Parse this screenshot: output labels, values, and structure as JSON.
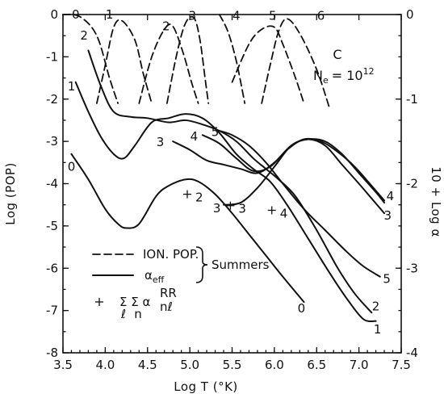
{
  "chart_data": {
    "type": "line",
    "title": "",
    "annotation": {
      "element": "C",
      "ne_label": "N",
      "ne_sub": "e",
      "ne_value": "= 10",
      "ne_exp": "12"
    },
    "xlabel": "Log T (°K)",
    "ylabel_left": "Log (POP)",
    "ylabel_right": "10 + Log α",
    "xlim": [
      3.5,
      7.5
    ],
    "ylim_left": [
      -8,
      0
    ],
    "ylim_right": [
      -4,
      0
    ],
    "x_ticks": [
      "3.5",
      "4.0",
      "4.5",
      "5.0",
      "5.5",
      "6.0",
      "6.5",
      "7.0",
      "7.5"
    ],
    "y_ticks_left": [
      "0",
      "-1",
      "-2",
      "-3",
      "-4",
      "-5",
      "-6",
      "-7",
      "-8"
    ],
    "y_ticks_right": [
      "0",
      "-1",
      "-2",
      "-3",
      "-4"
    ],
    "legend": {
      "dashed_label": "ION. POP.",
      "solid_label": "α",
      "solid_sub": "eff",
      "source_label": "Summers",
      "plus_label": "Σ Σ α",
      "plus_sub_sum1": "ℓ",
      "plus_sub_sum2": "n",
      "plus_sup": "RR",
      "plus_sub_alpha": "nℓ"
    },
    "series": [
      {
        "name": "0",
        "style": "dashed",
        "label_pos": [
          3.65,
          0.0
        ],
        "points": [
          [
            3.5,
            0
          ],
          [
            3.7,
            -0.05
          ],
          [
            3.9,
            -0.5
          ],
          [
            4.05,
            -1.5
          ],
          [
            4.15,
            -2.1
          ]
        ]
      },
      {
        "name": "1",
        "style": "dashed",
        "label_pos": [
          4.05,
          0.0
        ],
        "points": [
          [
            3.9,
            -2.1
          ],
          [
            4.0,
            -1.2
          ],
          [
            4.1,
            -0.3
          ],
          [
            4.2,
            -0.15
          ],
          [
            4.35,
            -0.6
          ],
          [
            4.45,
            -1.4
          ],
          [
            4.55,
            -2.1
          ]
        ]
      },
      {
        "name": "2",
        "style": "dashed",
        "label_pos": [
          4.72,
          -0.28
        ],
        "points": [
          [
            4.4,
            -2.1
          ],
          [
            4.55,
            -1.0
          ],
          [
            4.7,
            -0.35
          ],
          [
            4.8,
            -0.28
          ],
          [
            4.92,
            -0.9
          ],
          [
            5.02,
            -1.6
          ],
          [
            5.1,
            -2.1
          ]
        ]
      },
      {
        "name": "3",
        "style": "dashed",
        "label_pos": [
          5.03,
          -0.03
        ],
        "points": [
          [
            4.73,
            -2.1
          ],
          [
            4.85,
            -0.9
          ],
          [
            4.95,
            -0.2
          ],
          [
            5.05,
            -0.08
          ],
          [
            5.12,
            -0.6
          ],
          [
            5.18,
            -1.5
          ],
          [
            5.22,
            -2.1
          ]
        ]
      },
      {
        "name": "4",
        "style": "dashed",
        "label_pos": [
          5.55,
          -0.03
        ],
        "points": [
          [
            5.35,
            0
          ],
          [
            5.45,
            -0.4
          ],
          [
            5.55,
            -1.1
          ],
          [
            5.65,
            -2.1
          ]
        ]
      },
      {
        "name": "5",
        "style": "dashed",
        "label_pos": [
          5.98,
          -0.03
        ],
        "points": [
          [
            5.5,
            -1.6
          ],
          [
            5.7,
            -0.7
          ],
          [
            5.85,
            -0.35
          ],
          [
            6.0,
            -0.3
          ],
          [
            6.1,
            -0.7
          ],
          [
            6.25,
            -1.5
          ],
          [
            6.35,
            -2.1
          ]
        ]
      },
      {
        "name": "6",
        "style": "dashed",
        "label_pos": [
          6.55,
          -0.03
        ],
        "points": [
          [
            5.85,
            -2.1
          ],
          [
            5.95,
            -1.2
          ],
          [
            6.05,
            -0.4
          ],
          [
            6.15,
            -0.1
          ],
          [
            6.3,
            -0.45
          ],
          [
            6.5,
            -1.3
          ],
          [
            6.65,
            -2.2
          ]
        ]
      },
      {
        "name": "0",
        "style": "solid",
        "label_pos": [
          3.6,
          -3.6
        ],
        "points": [
          [
            3.6,
            -3.3
          ],
          [
            3.8,
            -3.9
          ],
          [
            4.0,
            -4.6
          ],
          [
            4.15,
            -4.95
          ],
          [
            4.25,
            -5.05
          ],
          [
            4.4,
            -4.95
          ],
          [
            4.6,
            -4.3
          ],
          [
            4.75,
            -4.05
          ],
          [
            4.95,
            -3.9
          ],
          [
            5.1,
            -3.95
          ],
          [
            5.3,
            -4.25
          ],
          [
            5.5,
            -4.7
          ],
          [
            5.7,
            -5.2
          ],
          [
            5.9,
            -5.7
          ],
          [
            6.1,
            -6.2
          ],
          [
            6.35,
            -6.8
          ]
        ]
      },
      {
        "name": "1",
        "style": "solid",
        "label_pos": [
          3.6,
          -1.7
        ],
        "points": [
          [
            3.65,
            -1.6
          ],
          [
            3.8,
            -2.3
          ],
          [
            3.95,
            -2.9
          ],
          [
            4.1,
            -3.3
          ],
          [
            4.22,
            -3.4
          ],
          [
            4.35,
            -3.1
          ],
          [
            4.55,
            -2.55
          ],
          [
            4.75,
            -2.45
          ],
          [
            4.95,
            -2.35
          ],
          [
            5.15,
            -2.45
          ],
          [
            5.35,
            -2.8
          ],
          [
            5.55,
            -3.3
          ],
          [
            5.75,
            -3.65
          ],
          [
            5.95,
            -3.95
          ],
          [
            6.15,
            -4.5
          ],
          [
            6.4,
            -5.3
          ],
          [
            6.65,
            -6.1
          ],
          [
            6.85,
            -6.7
          ],
          [
            7.05,
            -7.2
          ],
          [
            7.2,
            -7.25
          ]
        ]
      },
      {
        "name": "2",
        "style": "solid",
        "label_pos": [
          3.75,
          -0.5
        ],
        "points": [
          [
            3.8,
            -0.85
          ],
          [
            3.95,
            -1.7
          ],
          [
            4.1,
            -2.3
          ],
          [
            4.3,
            -2.42
          ],
          [
            4.5,
            -2.45
          ],
          [
            4.75,
            -2.55
          ],
          [
            4.95,
            -2.5
          ],
          [
            5.15,
            -2.6
          ],
          [
            5.35,
            -2.75
          ],
          [
            5.55,
            -3.0
          ],
          [
            5.75,
            -3.4
          ],
          [
            5.9,
            -3.65
          ],
          [
            6.05,
            -3.9
          ],
          [
            6.25,
            -4.3
          ],
          [
            6.5,
            -5.1
          ],
          [
            6.75,
            -6.0
          ],
          [
            6.95,
            -6.6
          ],
          [
            7.15,
            -7.05
          ]
        ]
      },
      {
        "name": "3",
        "style": "solid",
        "label_pos": [
          4.65,
          -3.02
        ],
        "points": [
          [
            4.8,
            -3.0
          ],
          [
            5.0,
            -3.2
          ],
          [
            5.2,
            -3.45
          ],
          [
            5.4,
            -3.55
          ],
          [
            5.6,
            -3.65
          ],
          [
            5.8,
            -3.75
          ],
          [
            6.0,
            -3.5
          ],
          [
            6.2,
            -3.1
          ],
          [
            6.4,
            -2.95
          ],
          [
            6.6,
            -3.1
          ],
          [
            6.8,
            -3.55
          ],
          [
            7.0,
            -4.0
          ],
          [
            7.15,
            -4.35
          ],
          [
            7.3,
            -4.7
          ]
        ]
      },
      {
        "name": "4",
        "style": "solid",
        "label_pos": [
          5.05,
          -2.88
        ],
        "points": [
          [
            5.15,
            -2.85
          ],
          [
            5.35,
            -3.05
          ],
          [
            5.55,
            -3.4
          ],
          [
            5.75,
            -3.7
          ],
          [
            5.95,
            -3.6
          ],
          [
            6.15,
            -3.2
          ],
          [
            6.35,
            -2.95
          ],
          [
            6.55,
            -3.0
          ],
          [
            6.75,
            -3.25
          ],
          [
            6.95,
            -3.6
          ],
          [
            7.15,
            -4.05
          ],
          [
            7.3,
            -4.4
          ]
        ]
      },
      {
        "name": "5",
        "style": "solid",
        "label_pos": [
          5.3,
          -2.78
        ],
        "points": [
          [
            5.35,
            -2.75
          ],
          [
            5.5,
            -2.85
          ],
          [
            5.7,
            -3.1
          ],
          [
            5.9,
            -3.5
          ],
          [
            6.1,
            -4.0
          ],
          [
            6.35,
            -4.6
          ],
          [
            6.6,
            -5.1
          ],
          [
            6.85,
            -5.6
          ],
          [
            7.05,
            -5.95
          ],
          [
            7.25,
            -6.2
          ]
        ]
      },
      {
        "name": "3",
        "style": "solid",
        "label_pos": [
          5.32,
          -4.58
        ],
        "points": [
          [
            5.4,
            -4.5
          ],
          [
            5.6,
            -4.45
          ],
          [
            5.8,
            -4.1
          ],
          [
            6.0,
            -3.6
          ],
          [
            6.2,
            -3.1
          ],
          [
            6.4,
            -2.95
          ],
          [
            6.6,
            -3.0
          ],
          [
            6.8,
            -3.3
          ],
          [
            7.0,
            -3.75
          ],
          [
            7.2,
            -4.2
          ],
          [
            7.3,
            -4.45
          ]
        ]
      }
    ],
    "curve_end_labels": [
      {
        "name": "0",
        "pos": [
          6.32,
          -6.95
        ]
      },
      {
        "name": "1",
        "pos": [
          7.22,
          -7.45
        ]
      },
      {
        "name": "2",
        "pos": [
          7.2,
          -6.9
        ]
      },
      {
        "name": "5",
        "pos": [
          7.33,
          -6.25
        ]
      },
      {
        "name": "3",
        "pos": [
          7.34,
          -4.75
        ]
      },
      {
        "name": "4",
        "pos": [
          7.37,
          -4.3
        ]
      }
    ],
    "rr_points": [
      {
        "label": "2",
        "x": 4.97,
        "y": -4.25
      },
      {
        "label": "3",
        "x": 5.48,
        "y": -4.52
      },
      {
        "label": "4",
        "x": 5.97,
        "y": -4.63
      }
    ]
  }
}
